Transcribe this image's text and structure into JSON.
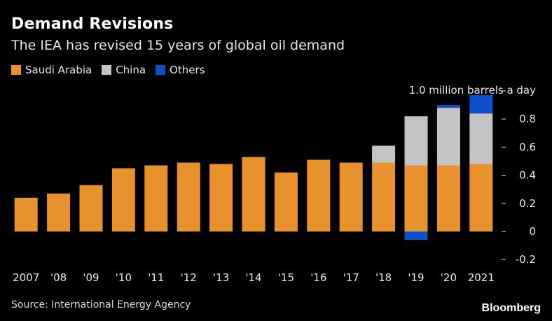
{
  "title": "Demand Revisions",
  "subtitle": "The IEA has revised 15 years of global oil demand",
  "legend": [
    {
      "label": "Saudi Arabia",
      "color": "#e8922e"
    },
    {
      "label": "China",
      "color": "#c4c4c4"
    },
    {
      "label": "Others",
      "color": "#0a50c8"
    }
  ],
  "source": "Source: International Energy Agency",
  "brand": "Bloomberg",
  "chart_data": {
    "type": "bar",
    "stacked": true,
    "categories": [
      "2007",
      "'08",
      "'09",
      "'10",
      "'11",
      "'12",
      "'13",
      "'14",
      "'15",
      "'16",
      "'17",
      "'18",
      "'19",
      "'20",
      "2021"
    ],
    "series": [
      {
        "name": "Saudi Arabia",
        "color": "#e8922e",
        "values": [
          0.24,
          0.27,
          0.33,
          0.45,
          0.47,
          0.49,
          0.48,
          0.53,
          0.42,
          0.51,
          0.49,
          0.49,
          0.47,
          0.47,
          0.48
        ]
      },
      {
        "name": "China",
        "color": "#c4c4c4",
        "values": [
          0,
          0,
          0,
          0,
          0,
          0,
          0,
          0,
          0,
          0,
          0,
          0.12,
          0.35,
          0.41,
          0.36
        ]
      },
      {
        "name": "Others",
        "color": "#0a50c8",
        "values": [
          0,
          0,
          0,
          0,
          0,
          0,
          0,
          0,
          0,
          0,
          0,
          0,
          -0.06,
          0.02,
          0.13
        ]
      }
    ],
    "y_ticks": [
      "-0.2",
      "0",
      "0.2",
      "0.4",
      "0.6",
      "0.8"
    ],
    "y_tick_values": [
      -0.2,
      0,
      0.2,
      0.4,
      0.6,
      0.8
    ],
    "y_top_label": "1.0 million barrels a day",
    "ylim": [
      -0.2,
      1.0
    ],
    "axis_position": "right",
    "grid": false
  }
}
